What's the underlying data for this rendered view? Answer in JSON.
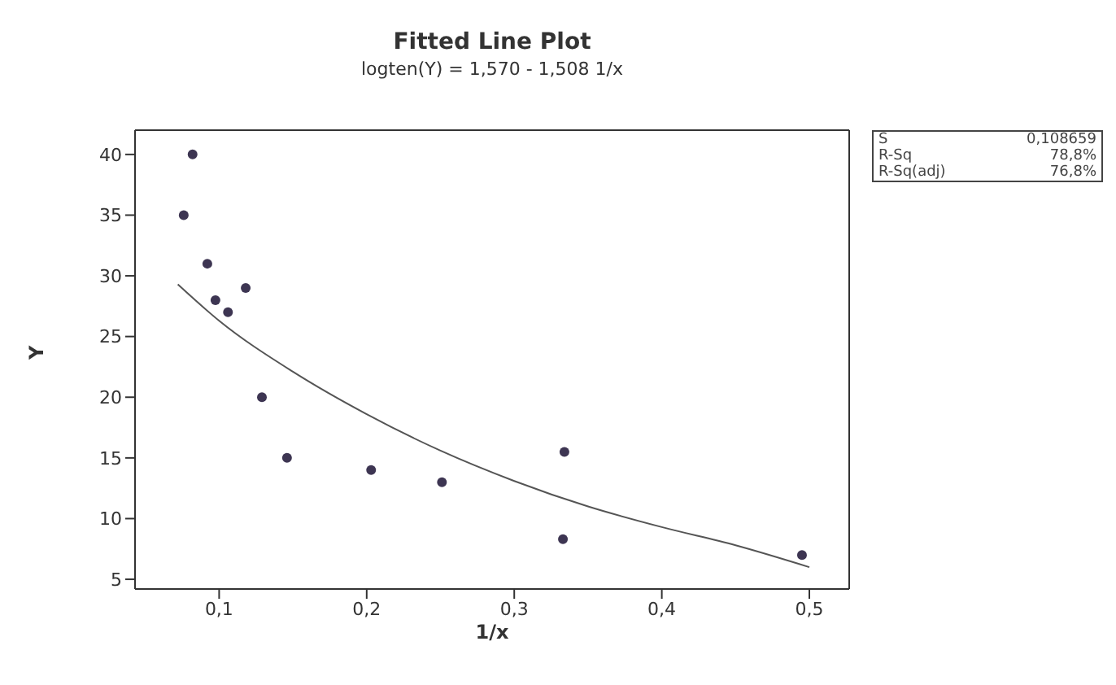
{
  "chart_data": {
    "type": "scatter",
    "title": "Fitted Line Plot",
    "subtitle": "logten(Y) =  1,570 - 1,508 1/x",
    "xlabel": "1/x",
    "ylabel": "Y",
    "annotations": [
      "S 0,108659",
      "R-Sq 78,8%",
      "R-Sq(adj) 76,8%"
    ],
    "series": [
      {
        "marker": "circle",
        "color": "#3d3552",
        "x": [
          0.076,
          0.082,
          0.092,
          0.0975,
          0.106,
          0.118,
          0.129,
          0.146,
          0.203,
          0.251,
          0.334,
          0.333,
          0.495
        ],
        "values": [
          35,
          40,
          31,
          28,
          27,
          29,
          20,
          15,
          14,
          13,
          15.5,
          8.3,
          7
        ]
      },
      {
        "type": "line",
        "marker": "none",
        "color": "#555555",
        "x": [
          0.072,
          0.1,
          0.15,
          0.2,
          0.25,
          0.3,
          0.35,
          0.4,
          0.45,
          0.5
        ],
        "values": [
          29.3,
          26.3,
          22.1,
          18.6,
          15.6,
          13.1,
          11.0,
          9.3,
          7.8,
          6.0
        ]
      }
    ],
    "xlim": [
      0.043,
      0.527
    ],
    "ylim": [
      4.2,
      42
    ],
    "xticks": [
      {
        "value": 0.1,
        "label": "0,1"
      },
      {
        "value": 0.2,
        "label": "0,2"
      },
      {
        "value": 0.3,
        "label": "0,3"
      },
      {
        "value": 0.4,
        "label": "0,4"
      },
      {
        "value": 0.5,
        "label": "0,5"
      }
    ],
    "yticks": [
      5,
      10,
      15,
      20,
      25,
      30,
      35,
      40
    ],
    "line_style": "solid"
  }
}
